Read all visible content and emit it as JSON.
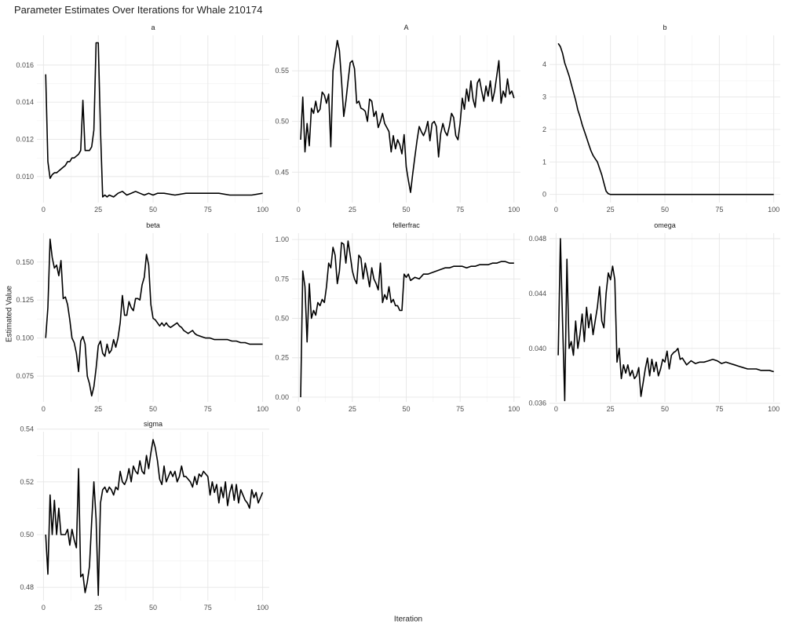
{
  "title": "Parameter Estimates Over Iterations for Whale 210174",
  "xlabel": "Iteration",
  "ylabel": "Estimated Value",
  "chart_data": [
    {
      "type": "line",
      "panel": "a",
      "title": "a",
      "xlim": [
        -3,
        103
      ],
      "ylim": [
        0.0086,
        0.0176
      ],
      "xticks": [
        0,
        25,
        50,
        75,
        100
      ],
      "xtick_labels": [
        "0",
        "25",
        "50",
        "75",
        "100"
      ],
      "yticks": [
        0.01,
        0.012,
        0.014,
        0.016
      ],
      "ytick_labels": [
        "0.010",
        "0.012",
        "0.014",
        "0.016"
      ],
      "x": [
        1,
        2,
        3,
        4,
        5,
        6,
        7,
        8,
        9,
        10,
        11,
        12,
        13,
        14,
        15,
        16,
        17,
        18,
        19,
        20,
        21,
        22,
        23,
        24,
        25,
        26,
        27,
        28,
        29,
        30,
        32,
        34,
        36,
        38,
        40,
        42,
        44,
        46,
        48,
        50,
        52,
        55,
        60,
        65,
        70,
        75,
        80,
        85,
        90,
        95,
        100
      ],
      "y": [
        0.0155,
        0.0108,
        0.0099,
        0.0101,
        0.0102,
        0.0102,
        0.0103,
        0.0104,
        0.0105,
        0.0106,
        0.0108,
        0.0108,
        0.011,
        0.011,
        0.0111,
        0.0112,
        0.0114,
        0.0141,
        0.0114,
        0.0114,
        0.0114,
        0.0116,
        0.0125,
        0.0172,
        0.0172,
        0.0125,
        0.0089,
        0.009,
        0.0089,
        0.009,
        0.0089,
        0.0091,
        0.0092,
        0.009,
        0.0091,
        0.0092,
        0.0091,
        0.009,
        0.0091,
        0.009,
        0.0091,
        0.0091,
        0.009,
        0.0091,
        0.0091,
        0.0091,
        0.0091,
        0.009,
        0.009,
        0.009,
        0.0091
      ]
    },
    {
      "type": "line",
      "panel": "A",
      "title": "A",
      "xlim": [
        -3,
        103
      ],
      "ylim": [
        0.42,
        0.585
      ],
      "xticks": [
        0,
        25,
        50,
        75,
        100
      ],
      "xtick_labels": [
        "0",
        "25",
        "50",
        "75",
        "100"
      ],
      "yticks": [
        0.45,
        0.5,
        0.55
      ],
      "ytick_labels": [
        "0.45",
        "0.50",
        "0.55"
      ],
      "x": [
        1,
        2,
        3,
        4,
        5,
        6,
        7,
        8,
        9,
        10,
        11,
        12,
        13,
        14,
        15,
        16,
        17,
        18,
        19,
        20,
        21,
        22,
        23,
        24,
        25,
        26,
        27,
        28,
        29,
        30,
        31,
        32,
        33,
        34,
        35,
        36,
        37,
        38,
        39,
        40,
        41,
        42,
        43,
        44,
        45,
        46,
        47,
        48,
        49,
        50,
        51,
        52,
        53,
        54,
        55,
        56,
        57,
        58,
        59,
        60,
        61,
        62,
        63,
        64,
        65,
        66,
        67,
        68,
        69,
        70,
        71,
        72,
        73,
        74,
        75,
        76,
        77,
        78,
        79,
        80,
        81,
        82,
        83,
        84,
        85,
        86,
        87,
        88,
        89,
        90,
        91,
        92,
        93,
        94,
        95,
        96,
        97,
        98,
        99,
        100
      ],
      "y": [
        0.482,
        0.524,
        0.47,
        0.498,
        0.476,
        0.513,
        0.508,
        0.52,
        0.509,
        0.512,
        0.529,
        0.526,
        0.518,
        0.527,
        0.475,
        0.55,
        0.565,
        0.58,
        0.57,
        0.54,
        0.505,
        0.52,
        0.54,
        0.558,
        0.56,
        0.552,
        0.518,
        0.52,
        0.513,
        0.512,
        0.51,
        0.5,
        0.522,
        0.52,
        0.505,
        0.51,
        0.494,
        0.5,
        0.508,
        0.498,
        0.494,
        0.49,
        0.47,
        0.486,
        0.473,
        0.482,
        0.477,
        0.468,
        0.487,
        0.455,
        0.442,
        0.43,
        0.448,
        0.465,
        0.481,
        0.495,
        0.49,
        0.486,
        0.491,
        0.5,
        0.481,
        0.498,
        0.5,
        0.495,
        0.465,
        0.488,
        0.498,
        0.49,
        0.486,
        0.495,
        0.508,
        0.504,
        0.486,
        0.482,
        0.498,
        0.523,
        0.512,
        0.532,
        0.52,
        0.54,
        0.522,
        0.514,
        0.538,
        0.542,
        0.53,
        0.52,
        0.535,
        0.525,
        0.54,
        0.52,
        0.53,
        0.545,
        0.56,
        0.518,
        0.53,
        0.524,
        0.542,
        0.527,
        0.53,
        0.523
      ]
    },
    {
      "type": "line",
      "panel": "b",
      "title": "b",
      "xlim": [
        -3,
        103
      ],
      "ylim": [
        -0.25,
        4.9
      ],
      "xticks": [
        0,
        25,
        50,
        75,
        100
      ],
      "xtick_labels": [
        "0",
        "25",
        "50",
        "75",
        "100"
      ],
      "yticks": [
        0,
        1,
        2,
        3,
        4
      ],
      "ytick_labels": [
        "0",
        "1",
        "2",
        "3",
        "4"
      ],
      "x": [
        1,
        2,
        3,
        4,
        5,
        6,
        7,
        8,
        9,
        10,
        11,
        12,
        13,
        14,
        15,
        16,
        17,
        18,
        19,
        20,
        21,
        22,
        23,
        24,
        25,
        26,
        30,
        40,
        50,
        60,
        70,
        80,
        90,
        100
      ],
      "y": [
        4.65,
        4.55,
        4.35,
        4.05,
        3.85,
        3.65,
        3.4,
        3.15,
        2.9,
        2.6,
        2.4,
        2.15,
        1.95,
        1.75,
        1.55,
        1.35,
        1.2,
        1.1,
        1.0,
        0.8,
        0.6,
        0.35,
        0.1,
        0.02,
        0.0,
        0.0,
        0.0,
        0.0,
        0.0,
        0.0,
        0.0,
        0.0,
        0.0,
        0.0
      ]
    },
    {
      "type": "line",
      "panel": "beta",
      "title": "beta",
      "xlim": [
        -3,
        103
      ],
      "ylim": [
        0.058,
        0.169
      ],
      "xticks": [
        0,
        25,
        50,
        75,
        100
      ],
      "xtick_labels": [
        "0",
        "25",
        "50",
        "75",
        "100"
      ],
      "yticks": [
        0.075,
        0.1,
        0.125,
        0.15
      ],
      "ytick_labels": [
        "0.075",
        "0.100",
        "0.125",
        "0.150"
      ],
      "x": [
        1,
        2,
        3,
        4,
        5,
        6,
        7,
        8,
        9,
        10,
        11,
        12,
        13,
        14,
        15,
        16,
        17,
        18,
        19,
        20,
        21,
        22,
        23,
        24,
        25,
        26,
        27,
        28,
        29,
        30,
        31,
        32,
        33,
        34,
        35,
        36,
        37,
        38,
        39,
        40,
        41,
        42,
        43,
        44,
        45,
        46,
        47,
        48,
        49,
        50,
        51,
        52,
        53,
        54,
        55,
        56,
        57,
        58,
        59,
        60,
        61,
        62,
        63,
        64,
        65,
        66,
        67,
        68,
        69,
        70,
        72,
        74,
        76,
        78,
        80,
        82,
        84,
        86,
        88,
        90,
        92,
        94,
        96,
        98,
        100
      ],
      "y": [
        0.1,
        0.12,
        0.165,
        0.153,
        0.146,
        0.148,
        0.141,
        0.151,
        0.126,
        0.127,
        0.122,
        0.112,
        0.1,
        0.097,
        0.09,
        0.078,
        0.098,
        0.101,
        0.096,
        0.075,
        0.07,
        0.062,
        0.068,
        0.08,
        0.095,
        0.098,
        0.09,
        0.088,
        0.096,
        0.09,
        0.092,
        0.099,
        0.094,
        0.1,
        0.11,
        0.128,
        0.115,
        0.115,
        0.124,
        0.12,
        0.118,
        0.126,
        0.126,
        0.125,
        0.135,
        0.14,
        0.155,
        0.148,
        0.122,
        0.113,
        0.112,
        0.11,
        0.108,
        0.11,
        0.108,
        0.11,
        0.108,
        0.107,
        0.108,
        0.109,
        0.11,
        0.108,
        0.107,
        0.105,
        0.104,
        0.103,
        0.104,
        0.105,
        0.103,
        0.102,
        0.101,
        0.1,
        0.1,
        0.099,
        0.099,
        0.099,
        0.099,
        0.098,
        0.098,
        0.097,
        0.097,
        0.096,
        0.096,
        0.096,
        0.096
      ]
    },
    {
      "type": "line",
      "panel": "fellerfrac",
      "title": "fellerfrac",
      "xlim": [
        -3,
        103
      ],
      "ylim": [
        -0.03,
        1.04
      ],
      "xticks": [
        0,
        25,
        50,
        75,
        100
      ],
      "xtick_labels": [
        "0",
        "25",
        "50",
        "75",
        "100"
      ],
      "yticks": [
        0.0,
        0.25,
        0.5,
        0.75,
        1.0
      ],
      "ytick_labels": [
        "0.00",
        "0.25",
        "0.50",
        "0.75",
        "1.00"
      ],
      "x": [
        1,
        2,
        3,
        4,
        5,
        6,
        7,
        8,
        9,
        10,
        11,
        12,
        13,
        14,
        15,
        16,
        17,
        18,
        19,
        20,
        21,
        22,
        23,
        24,
        25,
        26,
        27,
        28,
        29,
        30,
        31,
        32,
        33,
        34,
        35,
        36,
        37,
        38,
        39,
        40,
        41,
        42,
        43,
        44,
        45,
        46,
        47,
        48,
        49,
        50,
        51,
        52,
        54,
        56,
        58,
        60,
        62,
        64,
        66,
        68,
        70,
        72,
        74,
        76,
        78,
        80,
        82,
        84,
        86,
        88,
        90,
        92,
        94,
        96,
        98,
        100
      ],
      "y": [
        0.0,
        0.8,
        0.7,
        0.35,
        0.72,
        0.5,
        0.55,
        0.52,
        0.6,
        0.58,
        0.62,
        0.6,
        0.7,
        0.85,
        0.82,
        0.95,
        0.9,
        0.72,
        0.8,
        0.98,
        0.97,
        0.85,
        0.99,
        0.9,
        0.8,
        0.75,
        0.72,
        0.9,
        0.88,
        0.75,
        0.85,
        0.78,
        0.7,
        0.82,
        0.75,
        0.72,
        0.68,
        0.85,
        0.6,
        0.65,
        0.62,
        0.7,
        0.6,
        0.62,
        0.58,
        0.58,
        0.55,
        0.55,
        0.78,
        0.76,
        0.78,
        0.74,
        0.76,
        0.75,
        0.78,
        0.78,
        0.79,
        0.8,
        0.81,
        0.82,
        0.82,
        0.83,
        0.83,
        0.83,
        0.82,
        0.83,
        0.83,
        0.84,
        0.84,
        0.84,
        0.85,
        0.85,
        0.86,
        0.86,
        0.85,
        0.85
      ]
    },
    {
      "type": "line",
      "panel": "omega",
      "title": "omega",
      "xlim": [
        -3,
        103
      ],
      "ylim": [
        0.0361,
        0.0484
      ],
      "xticks": [
        0,
        25,
        50,
        75,
        100
      ],
      "xtick_labels": [
        "0",
        "25",
        "50",
        "75",
        "100"
      ],
      "yticks": [
        0.036,
        0.04,
        0.044,
        0.048
      ],
      "ytick_labels": [
        "0.036",
        "0.040",
        "0.044",
        "0.048"
      ],
      "x": [
        1,
        2,
        3,
        4,
        5,
        6,
        7,
        8,
        9,
        10,
        11,
        12,
        13,
        14,
        15,
        16,
        17,
        18,
        19,
        20,
        21,
        22,
        23,
        24,
        25,
        26,
        27,
        28,
        29,
        30,
        31,
        32,
        33,
        34,
        35,
        36,
        37,
        38,
        39,
        40,
        41,
        42,
        43,
        44,
        45,
        46,
        47,
        48,
        49,
        50,
        51,
        52,
        53,
        54,
        55,
        56,
        57,
        58,
        60,
        62,
        64,
        66,
        68,
        70,
        72,
        74,
        76,
        78,
        80,
        82,
        84,
        86,
        88,
        90,
        92,
        94,
        96,
        98,
        100
      ],
      "y": [
        0.0395,
        0.048,
        0.042,
        0.0362,
        0.0465,
        0.04,
        0.0405,
        0.0395,
        0.042,
        0.04,
        0.041,
        0.0425,
        0.0405,
        0.043,
        0.0415,
        0.0425,
        0.041,
        0.042,
        0.043,
        0.0445,
        0.042,
        0.0415,
        0.044,
        0.0455,
        0.045,
        0.046,
        0.045,
        0.039,
        0.04,
        0.0378,
        0.0388,
        0.0382,
        0.0388,
        0.038,
        0.0384,
        0.0378,
        0.038,
        0.0386,
        0.0365,
        0.0375,
        0.0385,
        0.0393,
        0.038,
        0.0392,
        0.0383,
        0.039,
        0.038,
        0.0385,
        0.0392,
        0.039,
        0.0398,
        0.0385,
        0.0395,
        0.0397,
        0.0398,
        0.04,
        0.0392,
        0.0393,
        0.0388,
        0.0391,
        0.0389,
        0.039,
        0.039,
        0.0391,
        0.0392,
        0.0391,
        0.0389,
        0.039,
        0.0389,
        0.0388,
        0.0387,
        0.0386,
        0.0385,
        0.0385,
        0.0385,
        0.0384,
        0.0384,
        0.0384,
        0.0383
      ]
    },
    {
      "type": "line",
      "panel": "sigma",
      "title": "sigma",
      "xlim": [
        -3,
        103
      ],
      "ylim": [
        0.475,
        0.539
      ],
      "xticks": [
        0,
        25,
        50,
        75,
        100
      ],
      "xtick_labels": [
        "0",
        "25",
        "50",
        "75",
        "100"
      ],
      "yticks": [
        0.48,
        0.5,
        0.52,
        0.54
      ],
      "ytick_labels": [
        "0.48",
        "0.50",
        "0.52",
        "0.54"
      ],
      "x": [
        1,
        2,
        3,
        4,
        5,
        6,
        7,
        8,
        9,
        10,
        11,
        12,
        13,
        14,
        15,
        16,
        17,
        18,
        19,
        20,
        21,
        22,
        23,
        24,
        25,
        26,
        27,
        28,
        29,
        30,
        31,
        32,
        33,
        34,
        35,
        36,
        37,
        38,
        39,
        40,
        41,
        42,
        43,
        44,
        45,
        46,
        47,
        48,
        49,
        50,
        51,
        52,
        53,
        54,
        55,
        56,
        57,
        58,
        59,
        60,
        61,
        62,
        63,
        64,
        65,
        66,
        67,
        68,
        69,
        70,
        71,
        72,
        73,
        74,
        75,
        76,
        77,
        78,
        79,
        80,
        81,
        82,
        83,
        84,
        85,
        86,
        87,
        88,
        89,
        90,
        91,
        92,
        93,
        94,
        95,
        96,
        97,
        98,
        99,
        100
      ],
      "y": [
        0.5,
        0.485,
        0.515,
        0.5,
        0.513,
        0.5,
        0.51,
        0.5,
        0.5,
        0.5,
        0.502,
        0.496,
        0.502,
        0.498,
        0.495,
        0.525,
        0.484,
        0.485,
        0.478,
        0.482,
        0.488,
        0.505,
        0.52,
        0.506,
        0.477,
        0.512,
        0.517,
        0.518,
        0.516,
        0.518,
        0.517,
        0.515,
        0.518,
        0.517,
        0.524,
        0.52,
        0.519,
        0.521,
        0.525,
        0.52,
        0.526,
        0.524,
        0.523,
        0.528,
        0.524,
        0.523,
        0.53,
        0.525,
        0.531,
        0.536,
        0.533,
        0.528,
        0.521,
        0.519,
        0.526,
        0.52,
        0.522,
        0.524,
        0.522,
        0.524,
        0.52,
        0.522,
        0.526,
        0.522,
        0.522,
        0.521,
        0.52,
        0.518,
        0.522,
        0.519,
        0.523,
        0.522,
        0.524,
        0.523,
        0.522,
        0.515,
        0.52,
        0.516,
        0.519,
        0.512,
        0.518,
        0.514,
        0.52,
        0.511,
        0.516,
        0.519,
        0.513,
        0.519,
        0.512,
        0.517,
        0.515,
        0.513,
        0.512,
        0.51,
        0.517,
        0.514,
        0.516,
        0.512,
        0.514,
        0.516
      ]
    }
  ]
}
